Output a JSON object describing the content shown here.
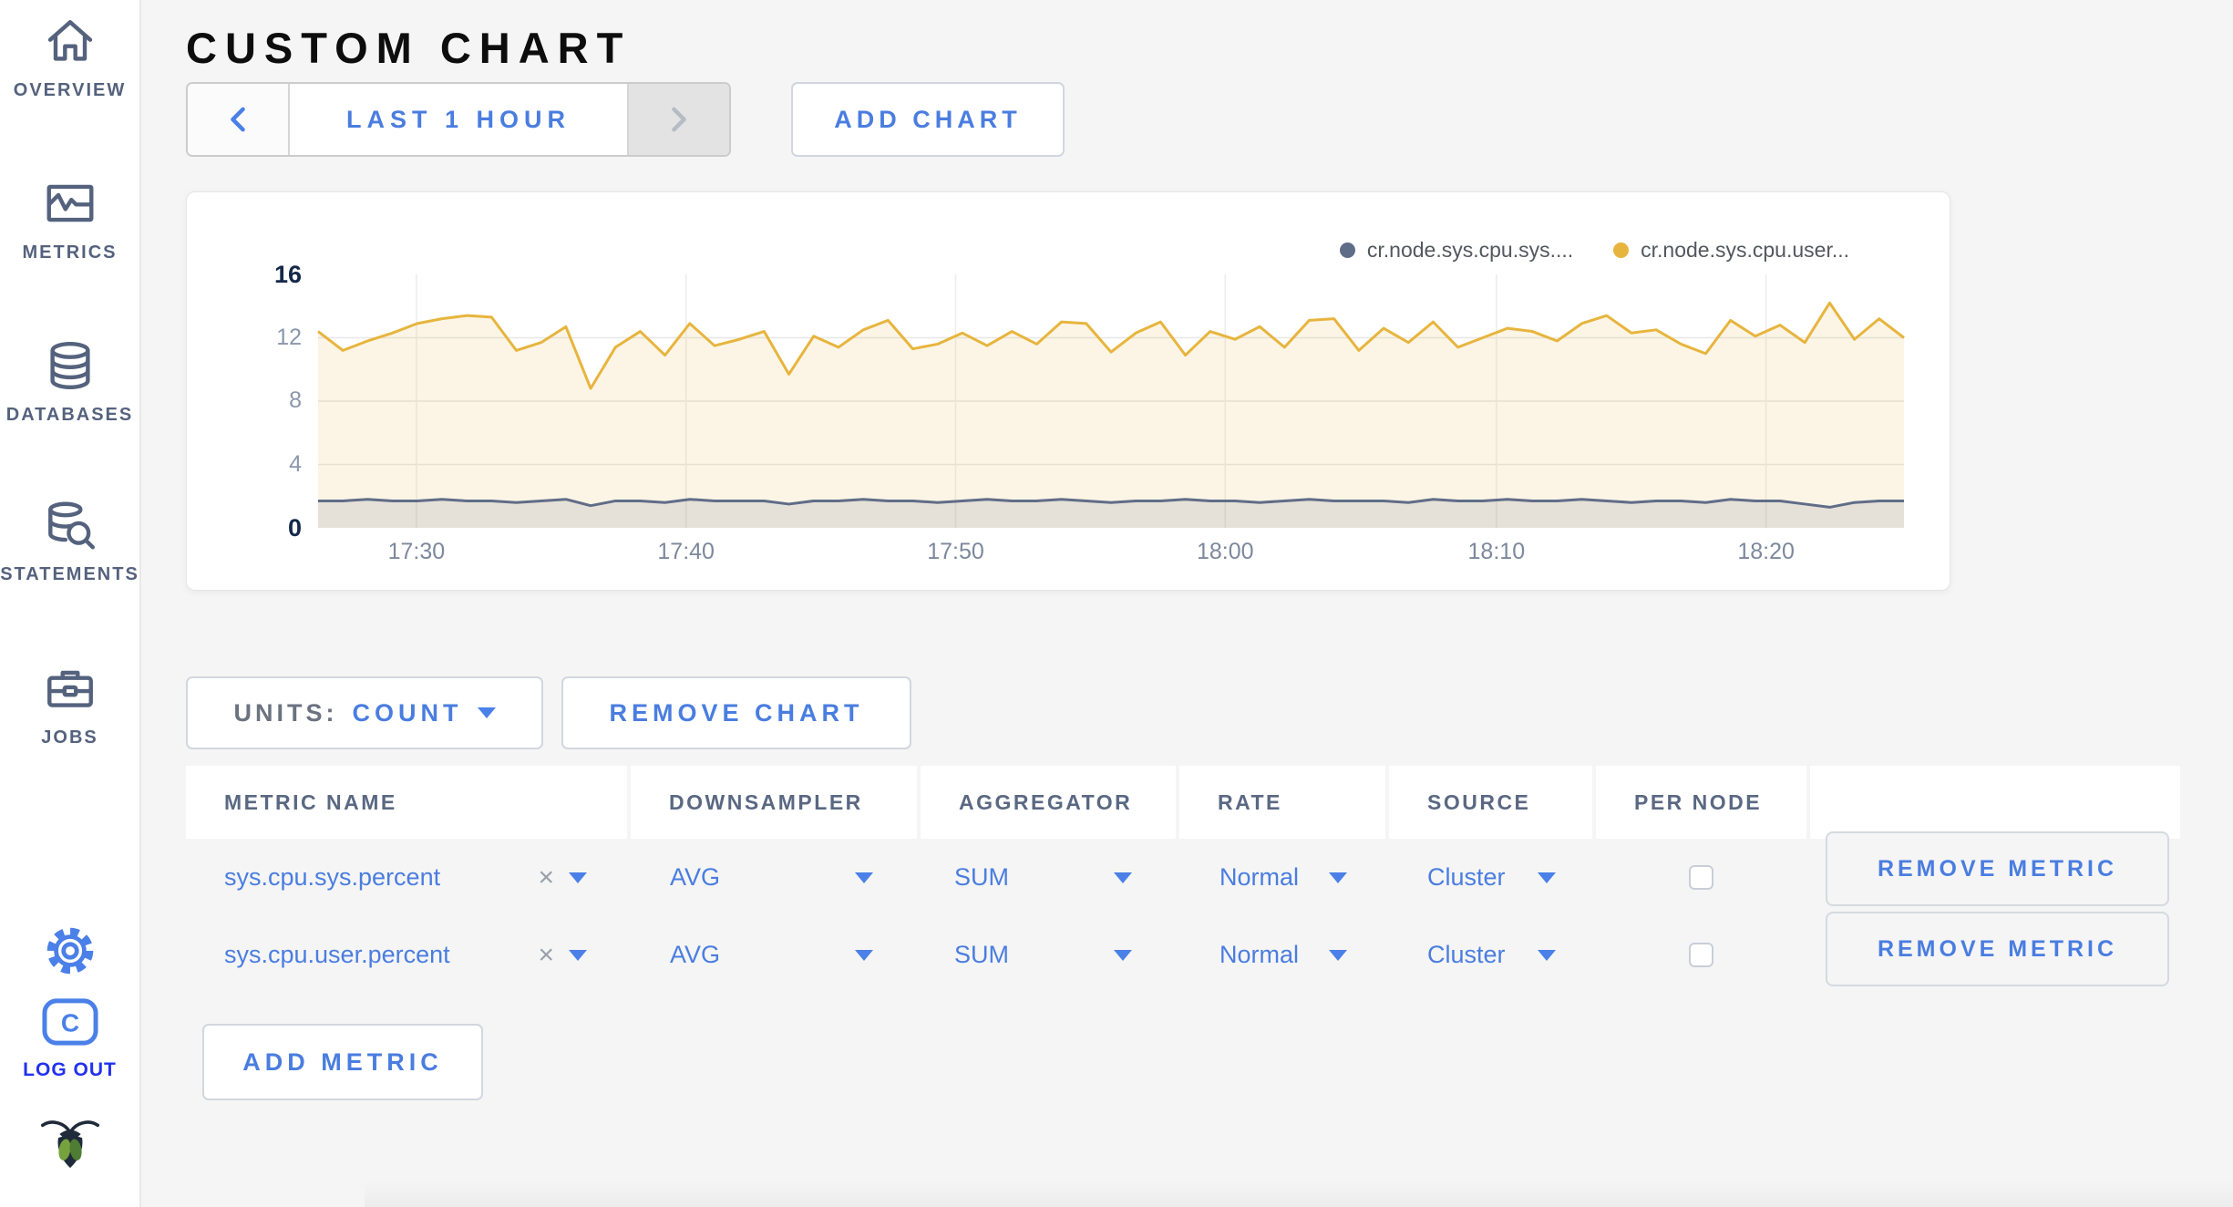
{
  "sidebar": {
    "items": [
      {
        "label": "OVERVIEW",
        "icon": "home-icon"
      },
      {
        "label": "METRICS",
        "icon": "metrics-icon"
      },
      {
        "label": "DATABASES",
        "icon": "databases-icon"
      },
      {
        "label": "STATEMENTS",
        "icon": "statements-icon"
      },
      {
        "label": "JOBS",
        "icon": "jobs-icon"
      }
    ],
    "settings_icon": "gear-icon",
    "logout": {
      "label": "LOG OUT",
      "icon": "cockroach-c-icon"
    },
    "logo_icon": "cockroach-bug-icon"
  },
  "header": {
    "title": "CUSTOM CHART"
  },
  "toolbar": {
    "time_range": {
      "label": "LAST 1 HOUR"
    },
    "add_chart_label": "ADD CHART"
  },
  "chart_card": {
    "legend": [
      {
        "label": "cr.node.sys.cpu.sys...."
      },
      {
        "label": "cr.node.sys.cpu.user..."
      }
    ]
  },
  "chart_data": {
    "type": "area",
    "title": "",
    "xlabel": "",
    "ylabel": "",
    "ylim": [
      0,
      16
    ],
    "y_ticks": [
      16,
      12,
      8,
      4,
      0
    ],
    "grid_values": [
      4,
      8,
      12
    ],
    "grid": true,
    "legend_position": "top-right",
    "x_ticks": [
      {
        "label": "17:30",
        "f": 0.062
      },
      {
        "label": "17:40",
        "f": 0.232
      },
      {
        "label": "17:50",
        "f": 0.402
      },
      {
        "label": "18:00",
        "f": 0.572
      },
      {
        "label": "18:10",
        "f": 0.743
      },
      {
        "label": "18:20",
        "f": 0.913
      }
    ],
    "series": [
      {
        "name": "cr.node.sys.cpu.sys....",
        "color": "#606d88",
        "fill": "rgba(96,109,136,0.14)",
        "values": [
          1.7,
          1.7,
          1.8,
          1.7,
          1.7,
          1.8,
          1.7,
          1.7,
          1.6,
          1.7,
          1.8,
          1.4,
          1.7,
          1.7,
          1.6,
          1.8,
          1.7,
          1.7,
          1.7,
          1.5,
          1.7,
          1.7,
          1.8,
          1.7,
          1.7,
          1.6,
          1.7,
          1.8,
          1.7,
          1.7,
          1.8,
          1.7,
          1.6,
          1.7,
          1.7,
          1.8,
          1.7,
          1.7,
          1.6,
          1.7,
          1.8,
          1.7,
          1.7,
          1.7,
          1.6,
          1.8,
          1.7,
          1.7,
          1.8,
          1.7,
          1.7,
          1.8,
          1.7,
          1.6,
          1.7,
          1.7,
          1.6,
          1.8,
          1.7,
          1.7,
          1.5,
          1.3,
          1.6,
          1.7,
          1.7
        ]
      },
      {
        "name": "cr.node.sys.cpu.user...",
        "color": "#e7b53e",
        "fill": "rgba(231,181,62,0.13)",
        "values": [
          12.4,
          11.2,
          11.8,
          12.3,
          12.9,
          13.2,
          13.4,
          13.3,
          11.2,
          11.7,
          12.7,
          8.8,
          11.4,
          12.4,
          10.9,
          12.9,
          11.5,
          11.9,
          12.4,
          9.7,
          12.1,
          11.4,
          12.5,
          13.1,
          11.3,
          11.6,
          12.3,
          11.5,
          12.4,
          11.6,
          13.0,
          12.9,
          11.1,
          12.3,
          13.0,
          10.9,
          12.4,
          11.9,
          12.7,
          11.4,
          13.1,
          13.2,
          11.2,
          12.6,
          11.7,
          13.0,
          11.4,
          12.0,
          12.6,
          12.4,
          11.8,
          12.9,
          13.4,
          12.3,
          12.5,
          11.6,
          11.0,
          13.1,
          12.1,
          12.8,
          11.7,
          14.2,
          11.9,
          13.2,
          12.0
        ]
      }
    ]
  },
  "units_row": {
    "units_label": "UNITS:",
    "units_value": "COUNT",
    "remove_chart_label": "REMOVE CHART"
  },
  "table": {
    "headers": [
      "METRIC NAME",
      "DOWNSAMPLER",
      "AGGREGATOR",
      "RATE",
      "SOURCE",
      "PER NODE"
    ],
    "rows": [
      {
        "metric": "sys.cpu.sys.percent",
        "downsampler": "AVG",
        "aggregator": "SUM",
        "rate": "Normal",
        "source": "Cluster",
        "per_node_checked": false,
        "action": "REMOVE METRIC"
      },
      {
        "metric": "sys.cpu.user.percent",
        "downsampler": "AVG",
        "aggregator": "SUM",
        "rate": "Normal",
        "source": "Cluster",
        "per_node_checked": false,
        "action": "REMOVE METRIC"
      }
    ],
    "add_metric_label": "ADD METRIC"
  }
}
